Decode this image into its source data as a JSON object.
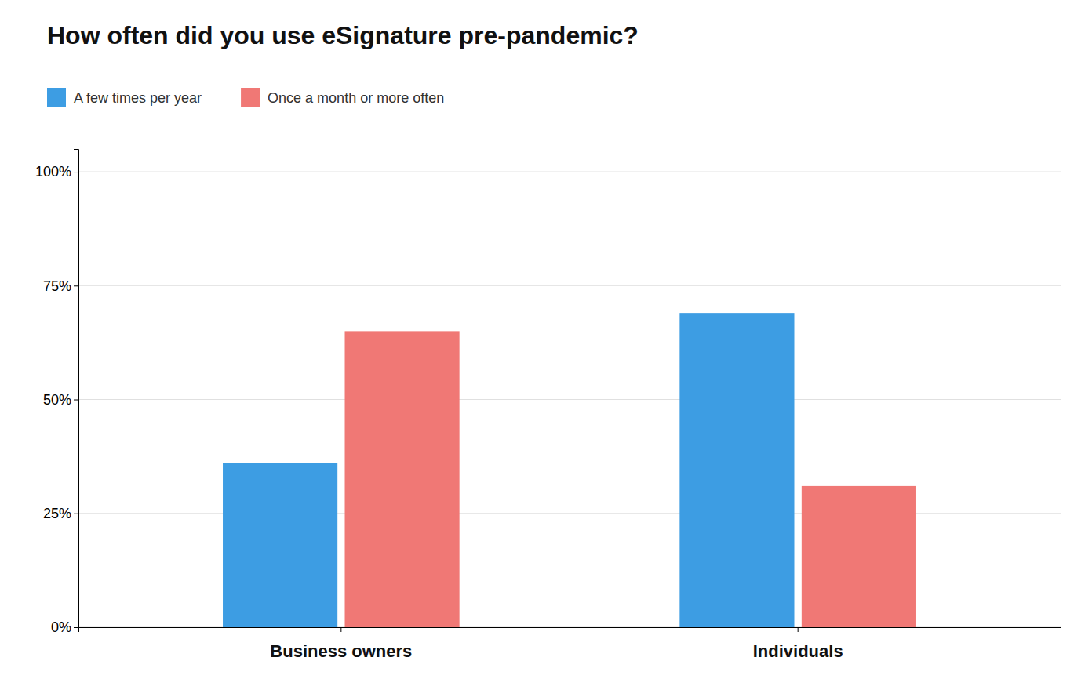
{
  "chart_data": {
    "type": "bar",
    "title": "How often did you use eSignature pre-pandemic?",
    "categories": [
      "Business owners",
      "Individuals"
    ],
    "series": [
      {
        "name": "A few times per year",
        "color": "#3d9de3",
        "values": [
          0.36,
          0.69
        ]
      },
      {
        "name": "Once a month or more often",
        "color": "#f07875",
        "values": [
          0.65,
          0.31
        ]
      }
    ],
    "ylim": [
      0,
      1.05
    ],
    "yticks": [
      {
        "value": 0,
        "label": "0%"
      },
      {
        "value": 0.25,
        "label": "25%"
      },
      {
        "value": 0.5,
        "label": "50%"
      },
      {
        "value": 0.75,
        "label": "75%"
      },
      {
        "value": 1.0,
        "label": "100%"
      }
    ],
    "grid": true,
    "legend": "top-left"
  }
}
